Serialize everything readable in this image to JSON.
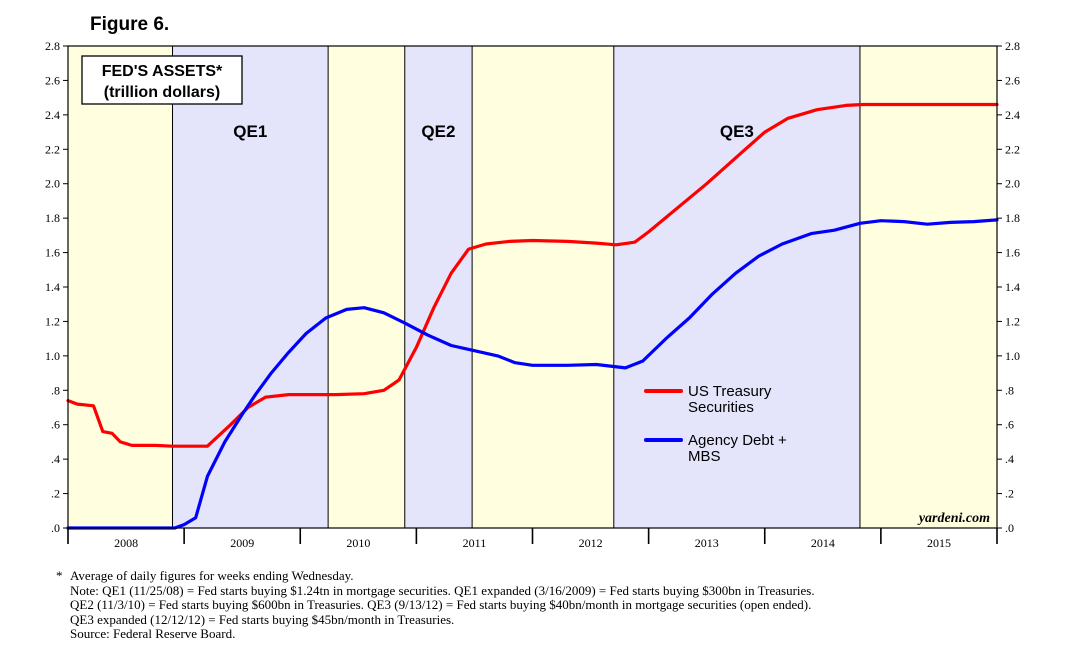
{
  "figure_label": "Figure 6.",
  "chart_data": {
    "type": "line",
    "title": "FED'S ASSETS*",
    "subtitle": "(trillion dollars)",
    "watermark": "yardeni.com",
    "x_start": 2008.0,
    "x_end": 2016.0,
    "xlim": [
      2008.0,
      2016.0
    ],
    "ylim": [
      0,
      2.8
    ],
    "y_ticks": [
      0,
      0.2,
      0.4,
      0.6,
      0.8,
      1.0,
      1.2,
      1.4,
      1.6,
      1.8,
      2.0,
      2.2,
      2.4,
      2.6,
      2.8
    ],
    "y_tick_labels": [
      ".0",
      ".2",
      ".4",
      ".6",
      ".8",
      "1.0",
      "1.2",
      "1.4",
      "1.6",
      "1.8",
      "2.0",
      "2.2",
      "2.4",
      "2.6",
      "2.8"
    ],
    "x_categories": [
      "2008",
      "2009",
      "2010",
      "2011",
      "2012",
      "2013",
      "2014",
      "2015"
    ],
    "grid": false,
    "legend_position": "right-middle",
    "background_colors": {
      "plain": "#ffffe0",
      "qe": "#e4e4fb"
    },
    "periods": [
      {
        "label": "",
        "start": 2008.0,
        "end": 2008.9,
        "kind": "plain"
      },
      {
        "label": "QE1",
        "start": 2008.9,
        "end": 2010.24,
        "kind": "qe"
      },
      {
        "label": "",
        "start": 2010.24,
        "end": 2010.9,
        "kind": "plain"
      },
      {
        "label": "QE2",
        "start": 2010.9,
        "end": 2011.48,
        "kind": "qe"
      },
      {
        "label": "",
        "start": 2011.48,
        "end": 2012.7,
        "kind": "plain"
      },
      {
        "label": "QE3",
        "start": 2012.7,
        "end": 2014.82,
        "kind": "qe"
      },
      {
        "label": "",
        "start": 2014.82,
        "end": 2016.0,
        "kind": "plain"
      }
    ],
    "series": [
      {
        "name": "US Treasury Securities",
        "legend_lines": [
          "US Treasury",
          "Securities"
        ],
        "color": "#ff0000",
        "points": [
          [
            2008.0,
            0.74
          ],
          [
            2008.08,
            0.72
          ],
          [
            2008.22,
            0.71
          ],
          [
            2008.3,
            0.56
          ],
          [
            2008.38,
            0.55
          ],
          [
            2008.45,
            0.5
          ],
          [
            2008.55,
            0.48
          ],
          [
            2008.75,
            0.48
          ],
          [
            2008.9,
            0.475
          ],
          [
            2009.0,
            0.475
          ],
          [
            2009.2,
            0.475
          ],
          [
            2009.4,
            0.6
          ],
          [
            2009.55,
            0.7
          ],
          [
            2009.7,
            0.76
          ],
          [
            2009.9,
            0.775
          ],
          [
            2010.3,
            0.775
          ],
          [
            2010.55,
            0.78
          ],
          [
            2010.72,
            0.8
          ],
          [
            2010.85,
            0.86
          ],
          [
            2011.0,
            1.05
          ],
          [
            2011.15,
            1.28
          ],
          [
            2011.3,
            1.48
          ],
          [
            2011.45,
            1.62
          ],
          [
            2011.6,
            1.65
          ],
          [
            2011.8,
            1.665
          ],
          [
            2012.0,
            1.67
          ],
          [
            2012.3,
            1.665
          ],
          [
            2012.55,
            1.655
          ],
          [
            2012.72,
            1.645
          ],
          [
            2012.88,
            1.66
          ],
          [
            2013.0,
            1.72
          ],
          [
            2013.5,
            2.0
          ],
          [
            2013.8,
            2.18
          ],
          [
            2014.0,
            2.3
          ],
          [
            2014.2,
            2.38
          ],
          [
            2014.45,
            2.43
          ],
          [
            2014.7,
            2.455
          ],
          [
            2014.85,
            2.46
          ],
          [
            2015.2,
            2.46
          ],
          [
            2015.6,
            2.46
          ],
          [
            2016.0,
            2.46
          ]
        ]
      },
      {
        "name": "Agency Debt + MBS",
        "legend_lines": [
          "Agency Debt +",
          "MBS"
        ],
        "color": "#0000ff",
        "points": [
          [
            2008.0,
            0.0
          ],
          [
            2008.5,
            0.0
          ],
          [
            2008.92,
            0.0
          ],
          [
            2009.0,
            0.02
          ],
          [
            2009.1,
            0.06
          ],
          [
            2009.2,
            0.3
          ],
          [
            2009.35,
            0.5
          ],
          [
            2009.5,
            0.66
          ],
          [
            2009.62,
            0.78
          ],
          [
            2009.75,
            0.9
          ],
          [
            2009.9,
            1.02
          ],
          [
            2010.05,
            1.13
          ],
          [
            2010.22,
            1.22
          ],
          [
            2010.4,
            1.27
          ],
          [
            2010.55,
            1.28
          ],
          [
            2010.72,
            1.25
          ],
          [
            2010.9,
            1.19
          ],
          [
            2011.1,
            1.12
          ],
          [
            2011.3,
            1.06
          ],
          [
            2011.5,
            1.03
          ],
          [
            2011.7,
            1.0
          ],
          [
            2011.85,
            0.96
          ],
          [
            2012.0,
            0.945
          ],
          [
            2012.3,
            0.945
          ],
          [
            2012.55,
            0.95
          ],
          [
            2012.8,
            0.93
          ],
          [
            2012.95,
            0.97
          ],
          [
            2013.15,
            1.1
          ],
          [
            2013.35,
            1.22
          ],
          [
            2013.55,
            1.36
          ],
          [
            2013.75,
            1.48
          ],
          [
            2013.95,
            1.58
          ],
          [
            2014.15,
            1.65
          ],
          [
            2014.4,
            1.71
          ],
          [
            2014.6,
            1.73
          ],
          [
            2014.82,
            1.77
          ],
          [
            2015.0,
            1.785
          ],
          [
            2015.2,
            1.78
          ],
          [
            2015.4,
            1.765
          ],
          [
            2015.6,
            1.775
          ],
          [
            2015.8,
            1.78
          ],
          [
            2016.0,
            1.79
          ]
        ]
      }
    ]
  },
  "notes": {
    "asterisk": "*",
    "lines": [
      "Average of daily figures for weeks ending Wednesday.",
      "Note: QE1 (11/25/08) = Fed starts buying $1.24tn in mortgage securities. QE1 expanded (3/16/2009) = Fed starts buying $300bn in Treasuries.",
      "QE2 (11/3/10) = Fed starts buying $600bn in Treasuries. QE3 (9/13/12) = Fed starts buying $40bn/month in mortgage securities (open ended).",
      "QE3 expanded (12/12/12) = Fed starts buying $45bn/month in Treasuries.",
      "Source: Federal Reserve Board."
    ]
  }
}
